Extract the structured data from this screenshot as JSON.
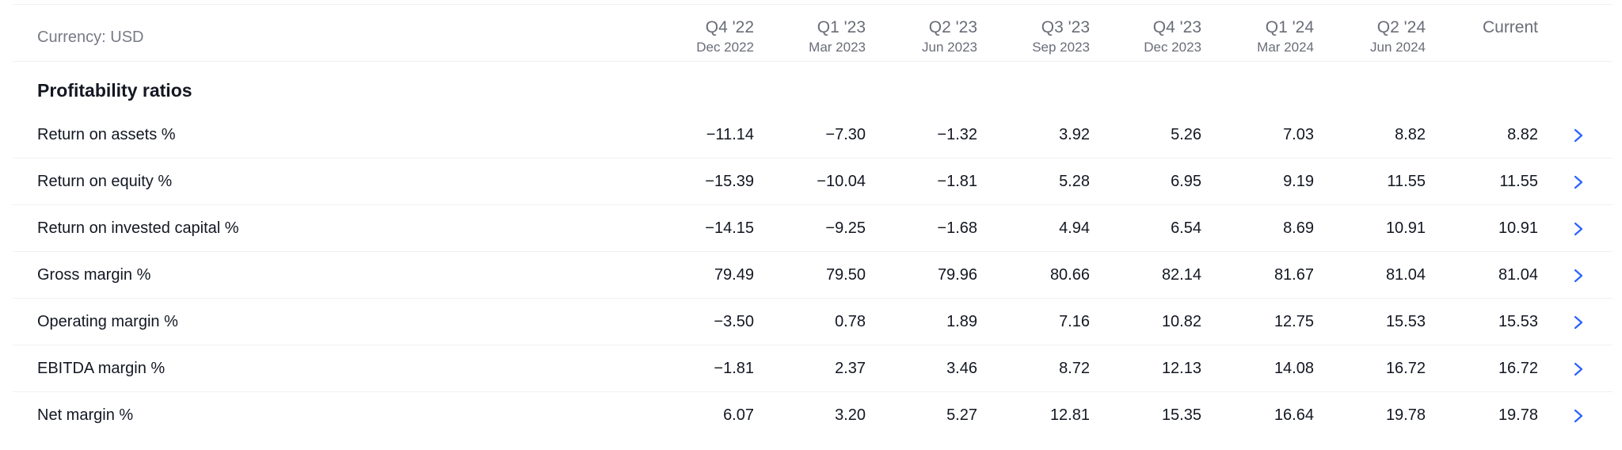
{
  "currency_label": "Currency: USD",
  "columns": [
    {
      "quarter": "Q4 '22",
      "date": "Dec 2022"
    },
    {
      "quarter": "Q1 '23",
      "date": "Mar 2023"
    },
    {
      "quarter": "Q2 '23",
      "date": "Jun 2023"
    },
    {
      "quarter": "Q3 '23",
      "date": "Sep 2023"
    },
    {
      "quarter": "Q4 '23",
      "date": "Dec 2023"
    },
    {
      "quarter": "Q1 '24",
      "date": "Mar 2024"
    },
    {
      "quarter": "Q2 '24",
      "date": "Jun 2024"
    },
    {
      "quarter": "Current",
      "date": ""
    }
  ],
  "section_title": "Profitability ratios",
  "rows": [
    {
      "label": "Return on assets %",
      "values": [
        "−11.14",
        "−7.30",
        "−1.32",
        "3.92",
        "5.26",
        "7.03",
        "8.82",
        "8.82"
      ]
    },
    {
      "label": "Return on equity %",
      "values": [
        "−15.39",
        "−10.04",
        "−1.81",
        "5.28",
        "6.95",
        "9.19",
        "11.55",
        "11.55"
      ]
    },
    {
      "label": "Return on invested capital %",
      "values": [
        "−14.15",
        "−9.25",
        "−1.68",
        "4.94",
        "6.54",
        "8.69",
        "10.91",
        "10.91"
      ]
    },
    {
      "label": "Gross margin %",
      "values": [
        "79.49",
        "79.50",
        "79.96",
        "80.66",
        "82.14",
        "81.67",
        "81.04",
        "81.04"
      ]
    },
    {
      "label": "Operating margin %",
      "values": [
        "−3.50",
        "0.78",
        "1.89",
        "7.16",
        "10.82",
        "12.75",
        "15.53",
        "15.53"
      ]
    },
    {
      "label": "EBITDA margin %",
      "values": [
        "−1.81",
        "2.37",
        "3.46",
        "8.72",
        "12.13",
        "14.08",
        "16.72",
        "16.72"
      ]
    },
    {
      "label": "Net margin %",
      "values": [
        "6.07",
        "3.20",
        "5.27",
        "12.81",
        "15.35",
        "16.64",
        "19.78",
        "19.78"
      ]
    }
  ],
  "row_action_icon": "chevron-right-icon",
  "colors": {
    "accent": "#2962ff",
    "text": "#131722",
    "muted": "#787b86",
    "divider": "#eef0f3"
  }
}
